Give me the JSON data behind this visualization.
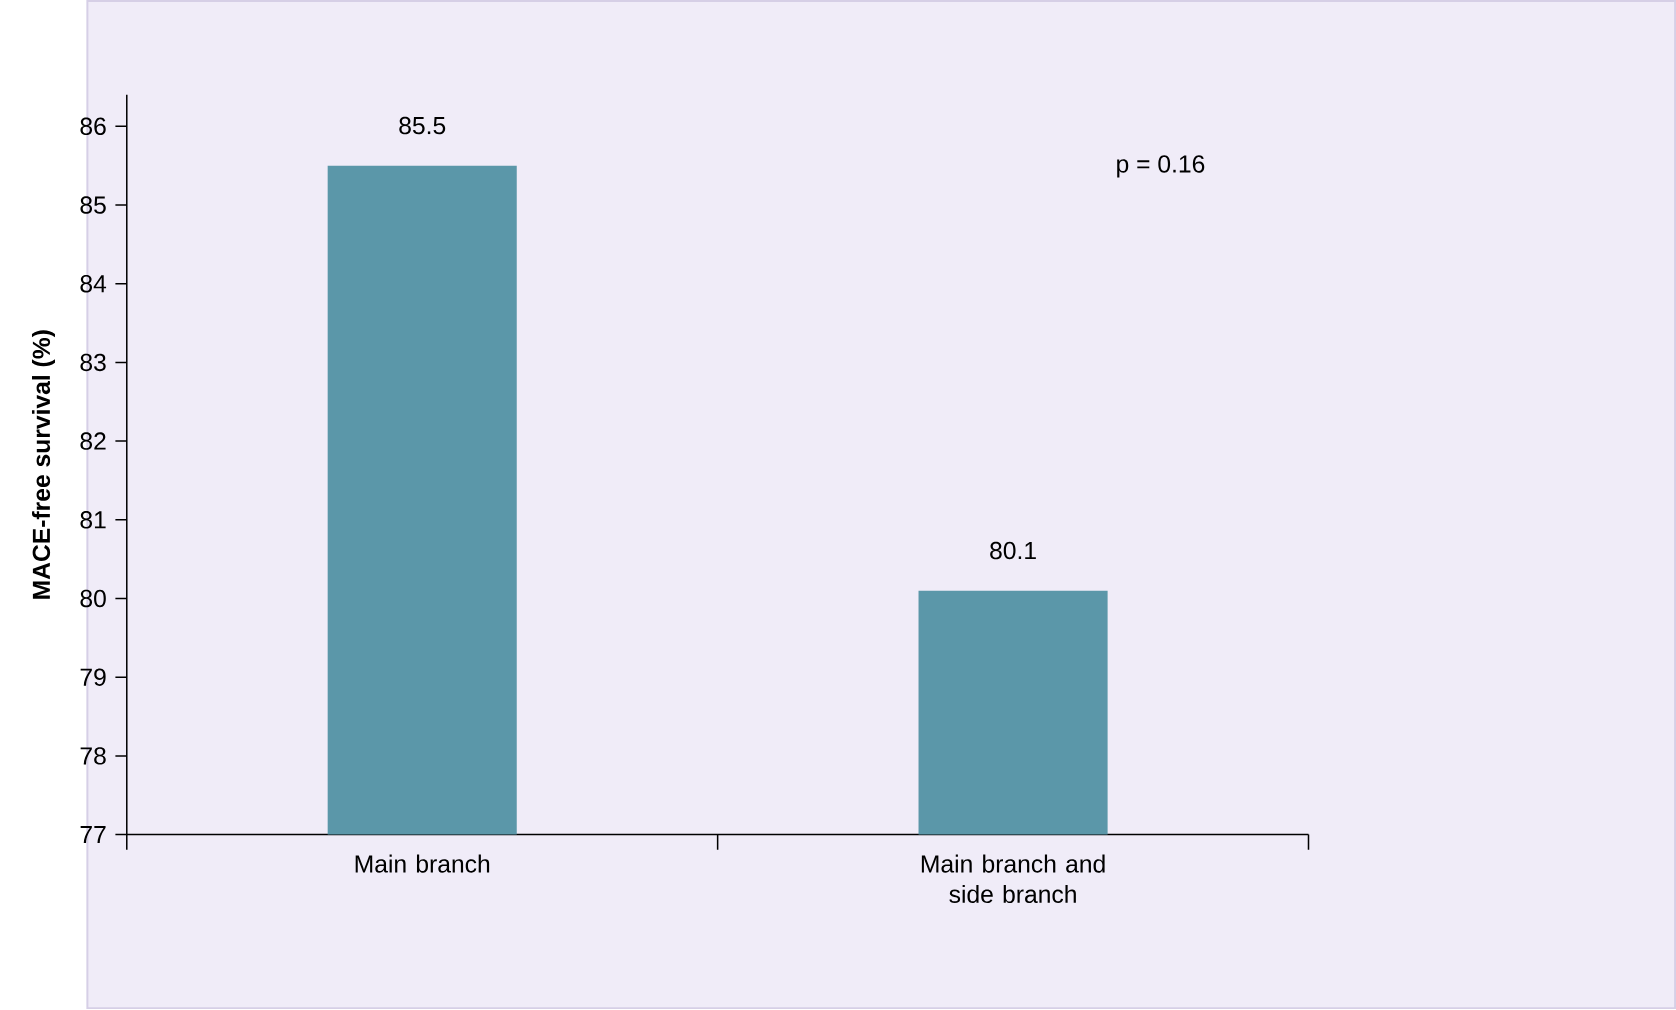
{
  "chart_data": {
    "type": "bar",
    "ylabel": "MACE-free survival (%)",
    "categories": [
      "Main branch",
      "Main branch and side branch"
    ],
    "values": [
      85.5,
      80.1
    ],
    "color": "#5b97a9",
    "ylim": [
      77,
      86.4
    ],
    "yticks": [
      77,
      78,
      79,
      80,
      81,
      82,
      83,
      84,
      85,
      86
    ],
    "data_labels": true,
    "annotations": [
      "p = 0.16"
    ]
  }
}
